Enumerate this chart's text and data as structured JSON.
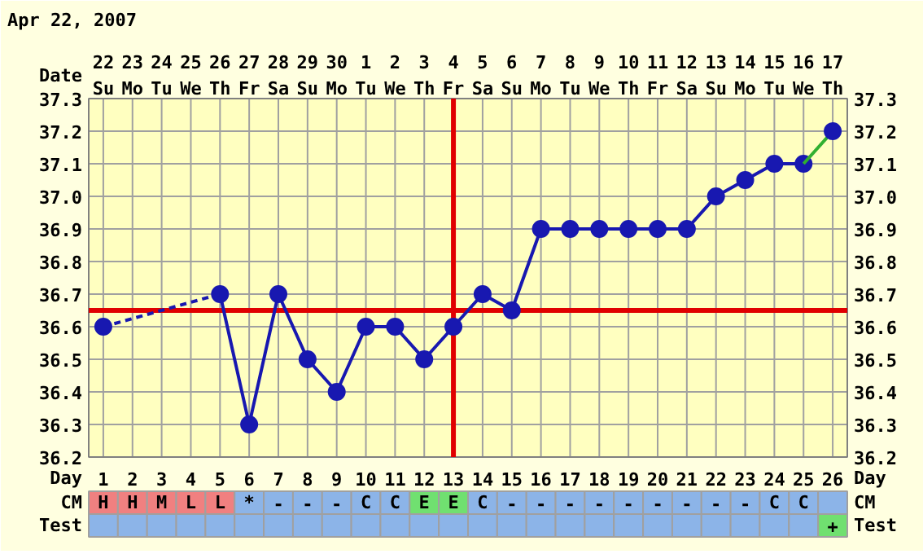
{
  "chart_data": [
    {
      "type": "line",
      "title": "Apr 22, 2007",
      "xlabel": "Day",
      "x2label": "Date",
      "xlim": [
        0.5,
        26.5
      ],
      "ylim": [
        36.2,
        37.3
      ],
      "xticks": [
        1,
        2,
        3,
        4,
        5,
        6,
        7,
        8,
        9,
        10,
        11,
        12,
        13,
        14,
        15,
        16,
        17,
        18,
        19,
        20,
        21,
        22,
        23,
        24,
        25,
        26
      ],
      "tick_labels": "xy",
      "x2lim": [
        "2007-04-21T12:00",
        "2007-05-17T12:00"
      ],
      "x2ticks": [
        {
          "value": "2007-04-22",
          "label": "22\nSu"
        },
        {
          "value": "2007-04-23",
          "label": "23\nMo"
        },
        {
          "value": "2007-04-24",
          "label": "24\nTu"
        },
        {
          "value": "2007-04-25",
          "label": "25\nWe"
        },
        {
          "value": "2007-04-26",
          "label": "26\nTh"
        },
        {
          "value": "2007-04-27",
          "label": "27\nFr"
        },
        {
          "value": "2007-04-28",
          "label": "28\nSa"
        },
        {
          "value": "2007-04-29",
          "label": "29\nSu"
        },
        {
          "value": "2007-04-30",
          "label": "30\nMo"
        },
        {
          "value": "2007-05-01",
          "label": "1\nTu"
        },
        {
          "value": "2007-05-02",
          "label": "2\nWe"
        },
        {
          "value": "2007-05-03",
          "label": "3\nTh"
        },
        {
          "value": "2007-05-04",
          "label": "4\nFr"
        },
        {
          "value": "2007-05-05",
          "label": "5\nSa"
        },
        {
          "value": "2007-05-06",
          "label": "6\nSu"
        },
        {
          "value": "2007-05-07",
          "label": "7\nMo"
        },
        {
          "value": "2007-05-08",
          "label": "8\nTu"
        },
        {
          "value": "2007-05-09",
          "label": "9\nWe"
        },
        {
          "value": "2007-05-10",
          "label": "10\nTh"
        },
        {
          "value": "2007-05-11",
          "label": "11\nFr"
        },
        {
          "value": "2007-05-12",
          "label": "12\nSa"
        },
        {
          "value": "2007-05-13",
          "label": "13\nSu"
        },
        {
          "value": "2007-05-14",
          "label": "14\nMo"
        },
        {
          "value": "2007-05-15",
          "label": "15\nTu"
        },
        {
          "value": "2007-05-16",
          "label": "16\nWe"
        },
        {
          "value": "2007-05-17",
          "label": "17\nTh"
        }
      ],
      "yticks": [
        36.2,
        36.3,
        36.4,
        36.5,
        36.6,
        36.7,
        36.8,
        36.9,
        {
          "value": 37.0,
          "label": "37.0"
        },
        37.1,
        37.2,
        37.3
      ],
      "y2lim": [
        36.2,
        37.3
      ],
      "y2ticks": [
        36.2,
        36.3,
        36.4,
        36.5,
        36.6,
        36.7,
        36.8,
        36.9,
        {
          "value": 37.0,
          "label": "37.0"
        },
        37.1,
        37.2,
        37.3
      ],
      "grid": true,
      "series": [
        {
          "type": "line",
          "color": "#1818b0",
          "marker": "circle",
          "line_style": "solid",
          "x": [
            5,
            6,
            7,
            8,
            9,
            10,
            11,
            12,
            13,
            14,
            15,
            16,
            17,
            18,
            19,
            20,
            21,
            22,
            23,
            24,
            25
          ],
          "values": [
            36.7,
            36.3,
            36.7,
            36.5,
            36.4,
            36.6,
            36.6,
            36.5,
            36.6,
            36.7,
            36.65,
            36.9,
            36.9,
            36.9,
            36.9,
            36.9,
            36.9,
            37.0,
            37.05,
            37.1,
            37.1
          ]
        },
        {
          "type": "line",
          "color": "#1818b0",
          "marker": "none",
          "line_style": "dashed",
          "x": [
            1,
            5
          ],
          "values": [
            36.6,
            36.7
          ]
        },
        {
          "type": "line",
          "color": "#30b030",
          "marker": "none",
          "line_style": "solid",
          "x": [
            25,
            26
          ],
          "values": [
            37.1,
            37.2
          ]
        },
        {
          "type": "scatter",
          "color": "#1818b0",
          "marker": "circle",
          "x": [
            1,
            26
          ],
          "values": [
            36.6,
            37.2
          ]
        }
      ],
      "ref_lines": [
        {
          "axis": "y",
          "value": 36.65,
          "color": "#e00000"
        },
        {
          "axis": "x",
          "value": 13,
          "color": "#e00000"
        }
      ]
    },
    {
      "type": "heatmap",
      "categories": [
        null,
        null,
        null,
        null,
        null,
        null,
        null,
        null,
        null,
        null,
        null,
        null,
        null,
        null,
        null,
        null,
        null,
        null,
        null,
        null,
        null,
        null,
        null,
        null,
        null,
        null
      ],
      "y_categories": [
        "CM",
        "Test"
      ],
      "y2_categories": [
        "CM",
        "Test"
      ],
      "colors": [
        [
          "#f08080",
          "#f08080",
          "#f08080",
          "#f08080",
          "#f08080",
          "#8cb4e8",
          "#8cb4e8",
          "#8cb4e8",
          "#8cb4e8",
          "#8cb4e8",
          "#8cb4e8",
          "#70e070",
          "#70e070",
          "#8cb4e8",
          "#8cb4e8",
          "#8cb4e8",
          "#8cb4e8",
          "#8cb4e8",
          "#8cb4e8",
          "#8cb4e8",
          "#8cb4e8",
          "#8cb4e8",
          "#8cb4e8",
          "#8cb4e8",
          "#8cb4e8",
          "#8cb4e8"
        ],
        [
          "#8cb4e8",
          "#8cb4e8",
          "#8cb4e8",
          "#8cb4e8",
          "#8cb4e8",
          "#8cb4e8",
          "#8cb4e8",
          "#8cb4e8",
          "#8cb4e8",
          "#8cb4e8",
          "#8cb4e8",
          "#8cb4e8",
          "#8cb4e8",
          "#8cb4e8",
          "#8cb4e8",
          "#8cb4e8",
          "#8cb4e8",
          "#8cb4e8",
          "#8cb4e8",
          "#8cb4e8",
          "#8cb4e8",
          "#8cb4e8",
          "#8cb4e8",
          "#8cb4e8",
          "#8cb4e8",
          "#70e070"
        ]
      ],
      "cells": [
        [
          "H",
          "H",
          "M",
          "L",
          "L",
          "*",
          "-",
          "-",
          "-",
          "C",
          "C",
          "E",
          "E",
          "C",
          "-",
          "-",
          "-",
          "-",
          "-",
          "-",
          "-",
          "-",
          "-",
          "C",
          "C",
          null
        ],
        [
          null,
          null,
          null,
          null,
          null,
          null,
          null,
          null,
          null,
          null,
          null,
          null,
          null,
          null,
          null,
          null,
          null,
          null,
          null,
          null,
          null,
          null,
          null,
          null,
          null,
          "+"
        ]
      ]
    }
  ]
}
